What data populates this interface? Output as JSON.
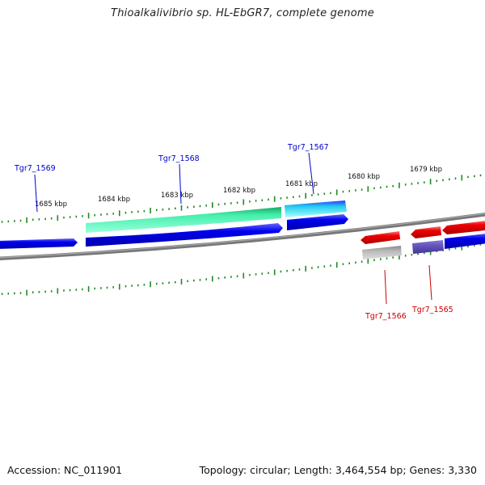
{
  "title": "Thioalkalivibrio sp. HL-EbGR7, complete genome",
  "footer": {
    "accession": "Accession: NC_011901",
    "topology": "Topology: circular; Length: 3,464,554 bp; Genes: 3,330"
  },
  "kbp_labels": [
    "1685 kbp",
    "1684 kbp",
    "1683 kbp",
    "1682 kbp",
    "1681 kbp",
    "1680 kbp",
    "1679 kbp"
  ],
  "gene_labels": {
    "forward": [
      "Tgr7_1569",
      "Tgr7_1568",
      "Tgr7_1567"
    ],
    "reverse": [
      "Tgr7_1566",
      "Tgr7_1565"
    ]
  },
  "colors": {
    "forward_label": "#0000cc",
    "reverse_label": "#cc0000",
    "cds_forward": "#0000ee",
    "cds_reverse": "#ee0000",
    "feature_green": "#33dd99",
    "feature_cyan": "#22ccee",
    "feature_gray": "#aaaaaa",
    "feature_purple": "#6655bb",
    "ticks": "#228822",
    "backbone": "#888888"
  }
}
